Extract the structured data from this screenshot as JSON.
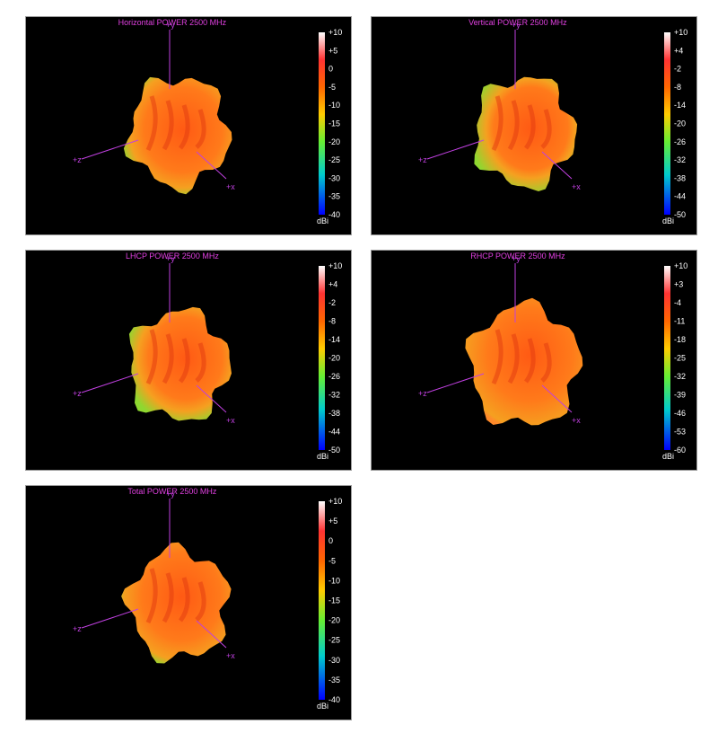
{
  "panels": [
    {
      "title": "Horizontal POWER 2500  MHz",
      "scale_labels": [
        "+10",
        "+5",
        "0",
        "-5",
        "-10",
        "-15",
        "-20",
        "-25",
        "-30",
        "-35",
        "-40"
      ],
      "unit": "dBi",
      "axes": {
        "y": "+y",
        "z": "+z",
        "x": "+x"
      }
    },
    {
      "title": "Vertical POWER 2500  MHz",
      "scale_labels": [
        "+10",
        "+4",
        "-2",
        "-8",
        "-14",
        "-20",
        "-26",
        "-32",
        "-38",
        "-44",
        "-50"
      ],
      "unit": "dBi",
      "axes": {
        "y": "+y",
        "z": "+z",
        "x": "+x"
      }
    },
    {
      "title": "LHCP POWER 2500  MHz",
      "scale_labels": [
        "+10",
        "+4",
        "-2",
        "-8",
        "-14",
        "-20",
        "-26",
        "-32",
        "-38",
        "-44",
        "-50"
      ],
      "unit": "dBi",
      "axes": {
        "y": "+y",
        "z": "+z",
        "x": "+x"
      }
    },
    {
      "title": "RHCP POWER 2500  MHz",
      "scale_labels": [
        "+10",
        "+3",
        "-4",
        "-11",
        "-18",
        "-25",
        "-32",
        "-39",
        "-46",
        "-53",
        "-60"
      ],
      "unit": "dBi",
      "axes": {
        "y": "+y",
        "z": "+z",
        "x": "+x"
      }
    },
    {
      "title": "Total POWER 2500  MHz",
      "scale_labels": [
        "+10",
        "+5",
        "0",
        "-5",
        "-10",
        "-15",
        "-20",
        "-25",
        "-30",
        "-35",
        "-40"
      ],
      "unit": "dBi",
      "axes": {
        "y": "+y",
        "z": "+z",
        "x": "+x"
      }
    }
  ]
}
